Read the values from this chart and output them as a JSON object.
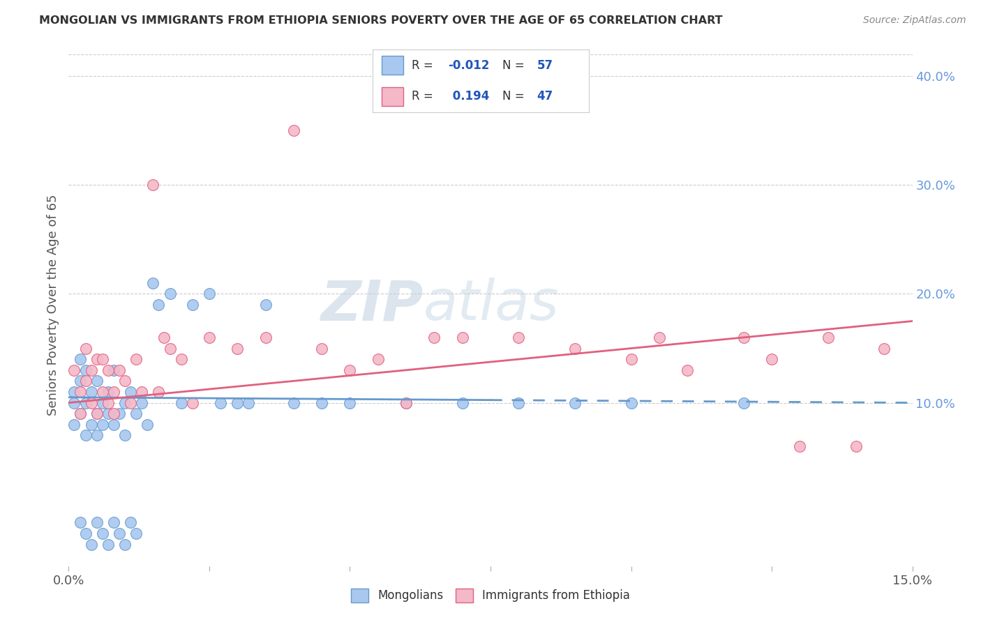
{
  "title": "MONGOLIAN VS IMMIGRANTS FROM ETHIOPIA SENIORS POVERTY OVER THE AGE OF 65 CORRELATION CHART",
  "source": "Source: ZipAtlas.com",
  "ylabel": "Seniors Poverty Over the Age of 65",
  "xlim": [
    0.0,
    0.15
  ],
  "ylim": [
    -0.05,
    0.43
  ],
  "right_yticks": [
    0.1,
    0.2,
    0.3,
    0.4
  ],
  "right_yticklabels": [
    "10.0%",
    "20.0%",
    "30.0%",
    "40.0%"
  ],
  "color_mongolian": "#a8c8f0",
  "color_ethiopia": "#f4b8c8",
  "color_line_mongolian": "#6699cc",
  "color_line_ethiopia": "#e06080",
  "watermark_zip": "ZIP",
  "watermark_atlas": "atlas",
  "r_mongolian": -0.012,
  "r_ethiopia": 0.194,
  "mongolian_x": [
    0.001,
    0.001,
    0.001,
    0.002,
    0.002,
    0.002,
    0.002,
    0.003,
    0.003,
    0.003,
    0.003,
    0.004,
    0.004,
    0.004,
    0.005,
    0.005,
    0.005,
    0.005,
    0.006,
    0.006,
    0.006,
    0.007,
    0.007,
    0.007,
    0.008,
    0.008,
    0.008,
    0.009,
    0.009,
    0.01,
    0.01,
    0.01,
    0.011,
    0.011,
    0.012,
    0.012,
    0.013,
    0.014,
    0.015,
    0.016,
    0.018,
    0.02,
    0.022,
    0.025,
    0.027,
    0.03,
    0.032,
    0.035,
    0.04,
    0.045,
    0.05,
    0.06,
    0.07,
    0.08,
    0.09,
    0.1,
    0.12
  ],
  "mongolian_y": [
    0.11,
    0.1,
    0.08,
    0.14,
    0.09,
    0.12,
    -0.01,
    0.1,
    0.07,
    0.13,
    -0.02,
    0.08,
    0.11,
    -0.03,
    0.09,
    0.12,
    0.07,
    -0.01,
    0.1,
    0.08,
    -0.02,
    0.09,
    0.11,
    -0.03,
    0.08,
    0.13,
    -0.01,
    0.09,
    -0.02,
    0.1,
    0.07,
    -0.03,
    0.11,
    -0.01,
    0.09,
    -0.02,
    0.1,
    0.08,
    0.21,
    0.19,
    0.2,
    0.1,
    0.19,
    0.2,
    0.1,
    0.1,
    0.1,
    0.19,
    0.1,
    0.1,
    0.1,
    0.1,
    0.1,
    0.1,
    0.1,
    0.1,
    0.1
  ],
  "ethiopia_x": [
    0.001,
    0.002,
    0.002,
    0.003,
    0.003,
    0.004,
    0.004,
    0.005,
    0.005,
    0.006,
    0.006,
    0.007,
    0.007,
    0.008,
    0.008,
    0.009,
    0.01,
    0.011,
    0.012,
    0.013,
    0.015,
    0.016,
    0.017,
    0.018,
    0.02,
    0.022,
    0.025,
    0.03,
    0.035,
    0.04,
    0.045,
    0.05,
    0.055,
    0.06,
    0.065,
    0.07,
    0.08,
    0.09,
    0.1,
    0.105,
    0.11,
    0.12,
    0.125,
    0.13,
    0.135,
    0.14,
    0.145
  ],
  "ethiopia_y": [
    0.13,
    0.11,
    0.09,
    0.12,
    0.15,
    0.1,
    0.13,
    0.09,
    0.14,
    0.11,
    0.14,
    0.1,
    0.13,
    0.11,
    0.09,
    0.13,
    0.12,
    0.1,
    0.14,
    0.11,
    0.3,
    0.11,
    0.16,
    0.15,
    0.14,
    0.1,
    0.16,
    0.15,
    0.16,
    0.35,
    0.15,
    0.13,
    0.14,
    0.1,
    0.16,
    0.16,
    0.16,
    0.15,
    0.14,
    0.16,
    0.13,
    0.16,
    0.14,
    0.06,
    0.16,
    0.06,
    0.15
  ]
}
